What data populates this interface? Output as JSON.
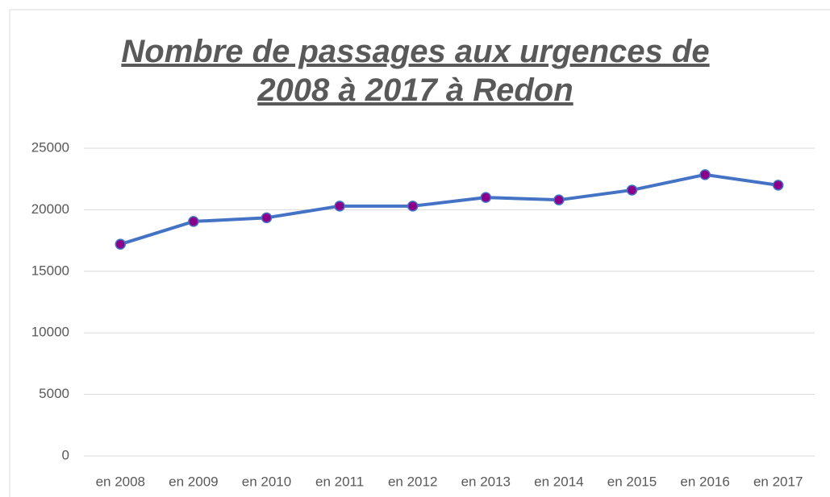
{
  "chart_data": {
    "type": "line",
    "title": "Nombre de passages aux urgences de 2008 à 2017 à Redon",
    "categories": [
      "en 2008",
      "en 2009",
      "en 2010",
      "en 2011",
      "en 2012",
      "en 2013",
      "en 2014",
      "en 2015",
      "en 2016",
      "en 2017"
    ],
    "series": [
      {
        "color": "#4472c4",
        "marker_color": "#8b008b",
        "values": [
          17200,
          19050,
          19350,
          20300,
          20300,
          21000,
          20800,
          21600,
          22850,
          22000
        ]
      }
    ],
    "ylim": [
      0,
      25000
    ],
    "yticks": [
      0,
      5000,
      10000,
      15000,
      20000,
      25000
    ],
    "grid": true
  }
}
